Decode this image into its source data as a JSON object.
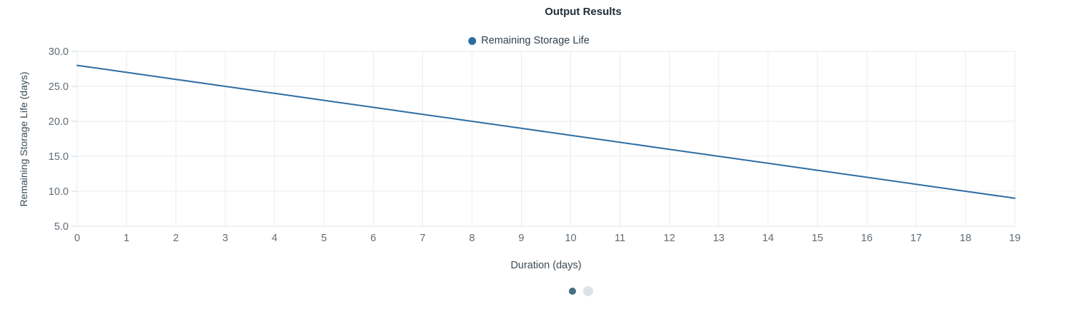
{
  "title": "Output Results",
  "legend": {
    "items": [
      {
        "label": "Remaining Storage Life",
        "color": "#2e6da4"
      }
    ]
  },
  "chart_data": {
    "type": "line",
    "title": "Output Results",
    "xlabel": "Duration (days)",
    "ylabel": "Remaining Storage Life (days)",
    "x": [
      0,
      1,
      2,
      3,
      4,
      5,
      6,
      7,
      8,
      9,
      10,
      11,
      12,
      13,
      14,
      15,
      16,
      17,
      18,
      19
    ],
    "series": [
      {
        "name": "Remaining Storage Life",
        "color": "#2e6da4",
        "values": [
          28,
          27,
          26,
          25,
          24,
          23,
          22,
          21,
          20,
          19,
          18,
          17,
          16,
          15,
          14,
          13,
          12,
          11,
          10,
          9
        ]
      }
    ],
    "xlim": [
      0,
      19
    ],
    "ylim": [
      5,
      30
    ],
    "x_tick_labels": [
      "0",
      "1",
      "2",
      "3",
      "4",
      "5",
      "6",
      "7",
      "8",
      "9",
      "10",
      "11",
      "12",
      "13",
      "14",
      "15",
      "16",
      "17",
      "18",
      "19"
    ],
    "y_ticks": [
      5,
      10,
      15,
      20,
      25,
      30
    ],
    "y_tick_labels": [
      "5.0",
      "10.0",
      "15.0",
      "20.0",
      "25.0",
      "30.0"
    ],
    "grid": true,
    "legend_position": "top"
  },
  "pagination": {
    "dots": [
      {
        "state": "active",
        "color": "#44707f"
      },
      {
        "state": "inactive",
        "color": "#dde3e8"
      }
    ]
  },
  "colors": {
    "gridline": "#e8ebee",
    "axis_line": "#dfe3e6",
    "tick_mark": "#d3d9dd",
    "tick_label": "#5f6b75",
    "axis_title": "#3d4b54",
    "title": "#20303c"
  }
}
